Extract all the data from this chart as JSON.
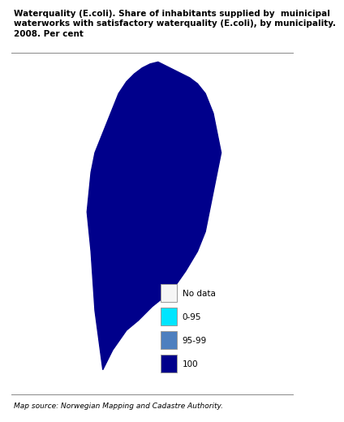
{
  "title": "Waterquality (E.coli). Share of inhabitants supplied by  muinicipal\nwaterworks with satisfactory waterquality (E.coli), by municipality.\n2008. Per cent",
  "source": "Map source: Norwegian Mapping and Cadastre Authority.",
  "legend_labels": [
    "No data",
    "0-95",
    "95-99",
    "100"
  ],
  "legend_colors": [
    "#f5f5f5",
    "#00e5ff",
    "#4d7fbf",
    "#00008b"
  ],
  "legend_edge_colors": [
    "#aaaaaa",
    "#aaaaaa",
    "#aaaaaa",
    "#aaaaaa"
  ],
  "bg_color": "#ffffff",
  "title_fontsize": 7.5,
  "source_fontsize": 6.5,
  "legend_fontsize": 7.5,
  "divider_color": "#888888",
  "map_dominant_color": "#00008b",
  "map_secondary_color": "#4d7fbf",
  "map_tertiary_color": "#00e5ff",
  "map_nodata_color": "#f5f5f5",
  "map_edge_color": "#888888"
}
